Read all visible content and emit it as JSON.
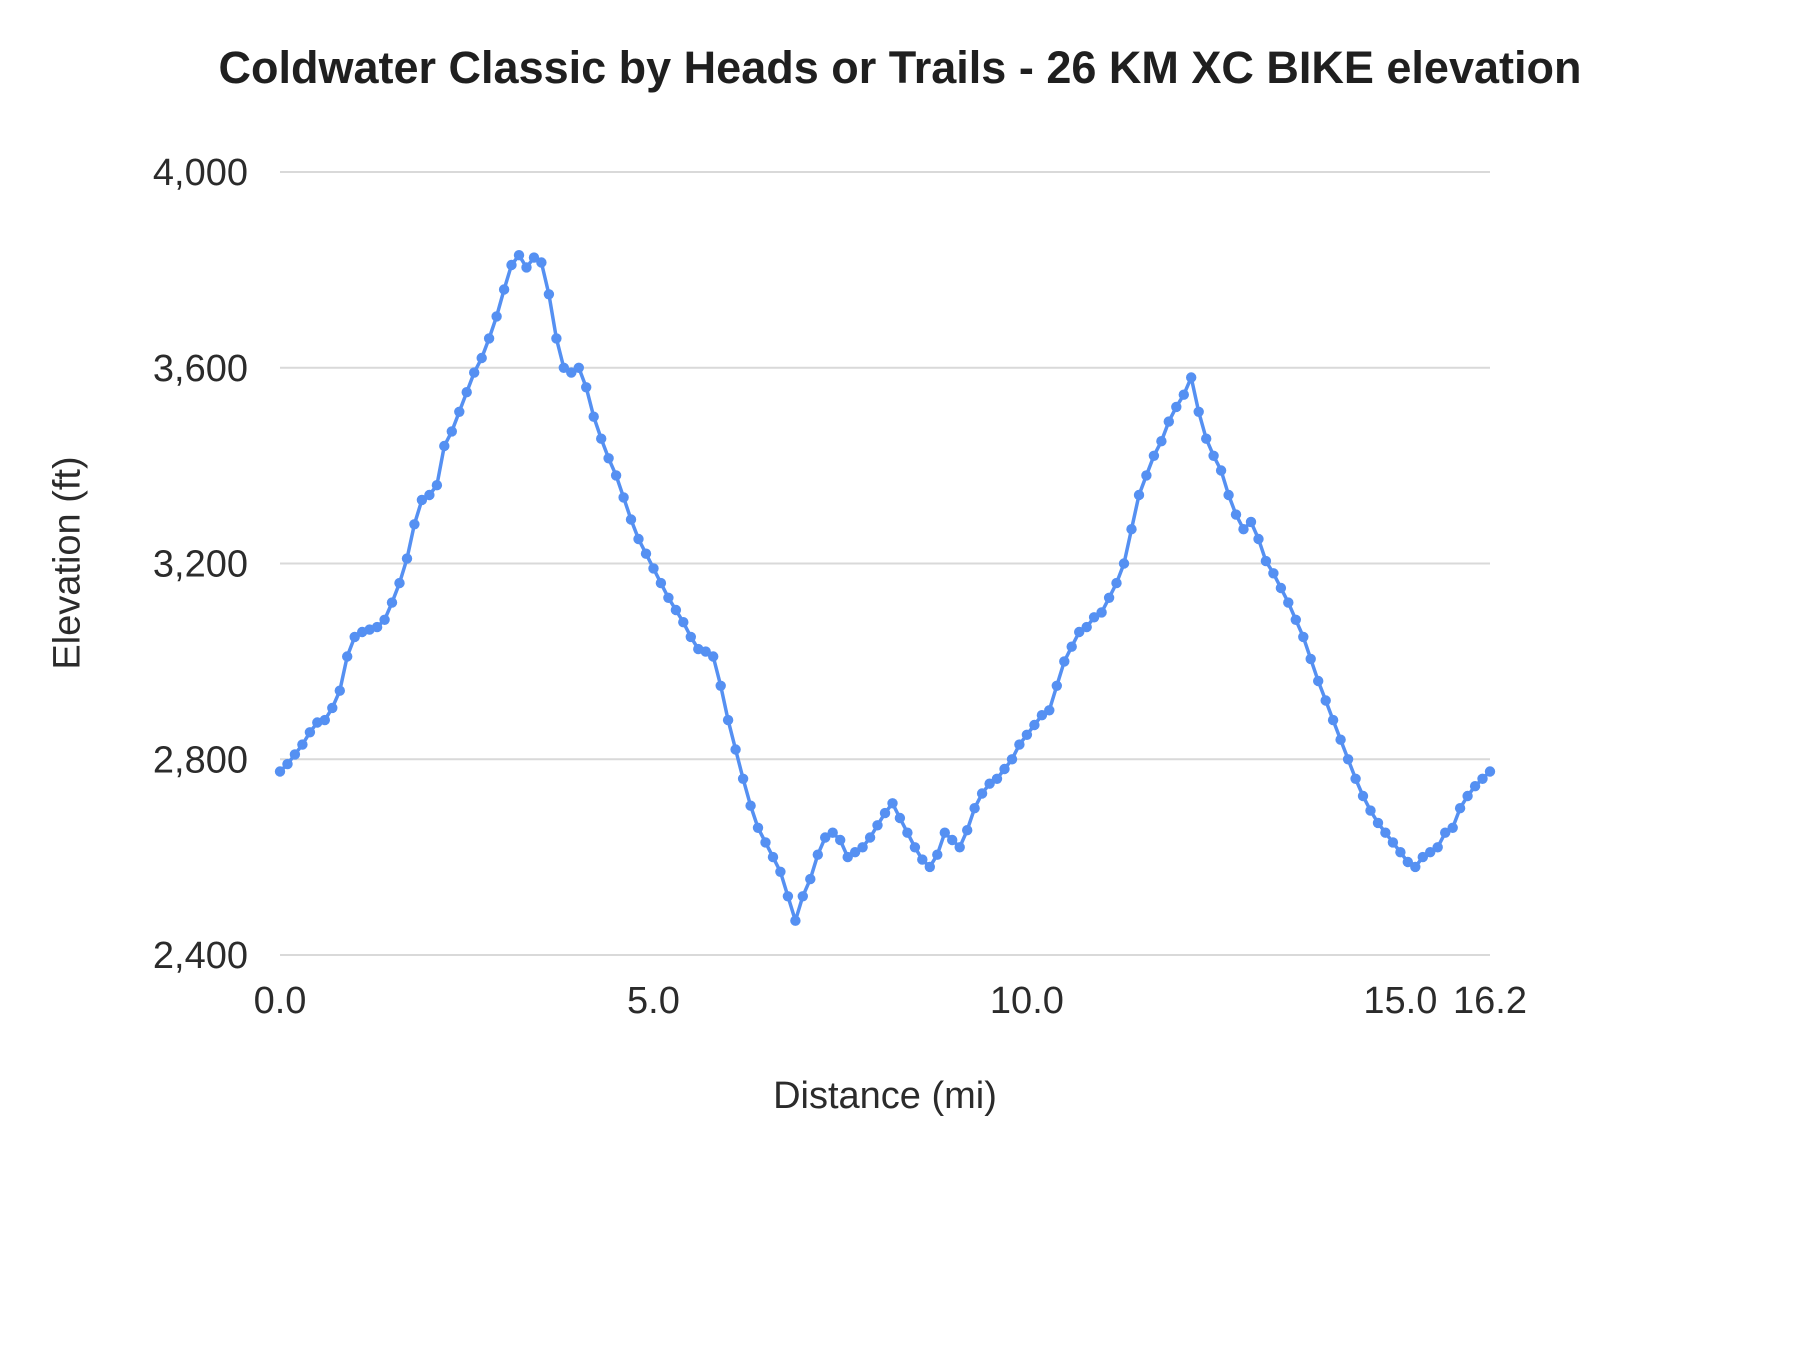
{
  "chart_data": {
    "type": "line",
    "title": "Coldwater Classic by Heads or Trails - 26 KM XC BIKE elevation",
    "xlabel": "Distance (mi)",
    "ylabel": "Elevation (ft)",
    "xlim": [
      0,
      16.2
    ],
    "ylim": [
      2400,
      4000
    ],
    "grid": "horizontal",
    "legend": "none",
    "line_color": "#5590f2",
    "gridline_color": "#d9d9d9",
    "x_ticks": {
      "values": [
        0.0,
        5.0,
        10.0,
        15.0,
        16.2
      ],
      "labels": [
        "0.0",
        "5.0",
        "10.0",
        "15.0",
        "16.2"
      ]
    },
    "y_ticks": {
      "values": [
        2400,
        2800,
        3200,
        3600,
        4000
      ],
      "labels": [
        "2,400",
        "2,800",
        "3,200",
        "3,600",
        "4,000"
      ]
    },
    "series": [
      {
        "name": "elevation",
        "points": [
          [
            0.0,
            2775
          ],
          [
            0.1,
            2790
          ],
          [
            0.2,
            2810
          ],
          [
            0.3,
            2830
          ],
          [
            0.4,
            2855
          ],
          [
            0.5,
            2875
          ],
          [
            0.6,
            2880
          ],
          [
            0.7,
            2905
          ],
          [
            0.8,
            2940
          ],
          [
            0.9,
            3010
          ],
          [
            1.0,
            3050
          ],
          [
            1.1,
            3060
          ],
          [
            1.2,
            3065
          ],
          [
            1.3,
            3070
          ],
          [
            1.4,
            3085
          ],
          [
            1.5,
            3120
          ],
          [
            1.6,
            3160
          ],
          [
            1.7,
            3210
          ],
          [
            1.8,
            3280
          ],
          [
            1.9,
            3330
          ],
          [
            2.0,
            3340
          ],
          [
            2.1,
            3360
          ],
          [
            2.2,
            3440
          ],
          [
            2.3,
            3470
          ],
          [
            2.4,
            3510
          ],
          [
            2.5,
            3550
          ],
          [
            2.6,
            3590
          ],
          [
            2.7,
            3620
          ],
          [
            2.8,
            3660
          ],
          [
            2.9,
            3705
          ],
          [
            3.0,
            3760
          ],
          [
            3.1,
            3810
          ],
          [
            3.2,
            3830
          ],
          [
            3.3,
            3805
          ],
          [
            3.4,
            3825
          ],
          [
            3.5,
            3815
          ],
          [
            3.6,
            3750
          ],
          [
            3.7,
            3660
          ],
          [
            3.8,
            3600
          ],
          [
            3.9,
            3590
          ],
          [
            4.0,
            3600
          ],
          [
            4.1,
            3560
          ],
          [
            4.2,
            3500
          ],
          [
            4.3,
            3455
          ],
          [
            4.4,
            3415
          ],
          [
            4.5,
            3380
          ],
          [
            4.6,
            3335
          ],
          [
            4.7,
            3290
          ],
          [
            4.8,
            3250
          ],
          [
            4.9,
            3220
          ],
          [
            5.0,
            3190
          ],
          [
            5.1,
            3160
          ],
          [
            5.2,
            3130
          ],
          [
            5.3,
            3105
          ],
          [
            5.4,
            3080
          ],
          [
            5.5,
            3050
          ],
          [
            5.6,
            3025
          ],
          [
            5.7,
            3020
          ],
          [
            5.8,
            3010
          ],
          [
            5.9,
            2950
          ],
          [
            6.0,
            2880
          ],
          [
            6.1,
            2820
          ],
          [
            6.2,
            2760
          ],
          [
            6.3,
            2705
          ],
          [
            6.4,
            2660
          ],
          [
            6.5,
            2630
          ],
          [
            6.6,
            2600
          ],
          [
            6.7,
            2570
          ],
          [
            6.8,
            2520
          ],
          [
            6.9,
            2470
          ],
          [
            7.0,
            2520
          ],
          [
            7.1,
            2555
          ],
          [
            7.2,
            2605
          ],
          [
            7.3,
            2640
          ],
          [
            7.4,
            2650
          ],
          [
            7.5,
            2635
          ],
          [
            7.6,
            2600
          ],
          [
            7.7,
            2610
          ],
          [
            7.8,
            2620
          ],
          [
            7.9,
            2640
          ],
          [
            8.0,
            2665
          ],
          [
            8.1,
            2690
          ],
          [
            8.2,
            2710
          ],
          [
            8.3,
            2680
          ],
          [
            8.4,
            2650
          ],
          [
            8.5,
            2620
          ],
          [
            8.6,
            2595
          ],
          [
            8.7,
            2580
          ],
          [
            8.8,
            2605
          ],
          [
            8.9,
            2650
          ],
          [
            9.0,
            2635
          ],
          [
            9.1,
            2620
          ],
          [
            9.2,
            2655
          ],
          [
            9.3,
            2700
          ],
          [
            9.4,
            2730
          ],
          [
            9.5,
            2750
          ],
          [
            9.6,
            2760
          ],
          [
            9.7,
            2780
          ],
          [
            9.8,
            2800
          ],
          [
            9.9,
            2830
          ],
          [
            10.0,
            2850
          ],
          [
            10.1,
            2870
          ],
          [
            10.2,
            2890
          ],
          [
            10.3,
            2900
          ],
          [
            10.4,
            2950
          ],
          [
            10.5,
            3000
          ],
          [
            10.6,
            3030
          ],
          [
            10.7,
            3060
          ],
          [
            10.8,
            3070
          ],
          [
            10.9,
            3090
          ],
          [
            11.0,
            3100
          ],
          [
            11.1,
            3130
          ],
          [
            11.2,
            3160
          ],
          [
            11.3,
            3200
          ],
          [
            11.4,
            3270
          ],
          [
            11.5,
            3340
          ],
          [
            11.6,
            3380
          ],
          [
            11.7,
            3420
          ],
          [
            11.8,
            3450
          ],
          [
            11.9,
            3490
          ],
          [
            12.0,
            3520
          ],
          [
            12.1,
            3545
          ],
          [
            12.2,
            3580
          ],
          [
            12.3,
            3510
          ],
          [
            12.4,
            3455
          ],
          [
            12.5,
            3420
          ],
          [
            12.6,
            3390
          ],
          [
            12.7,
            3340
          ],
          [
            12.8,
            3300
          ],
          [
            12.9,
            3270
          ],
          [
            13.0,
            3285
          ],
          [
            13.1,
            3250
          ],
          [
            13.2,
            3205
          ],
          [
            13.3,
            3180
          ],
          [
            13.4,
            3150
          ],
          [
            13.5,
            3120
          ],
          [
            13.6,
            3085
          ],
          [
            13.7,
            3050
          ],
          [
            13.8,
            3005
          ],
          [
            13.9,
            2960
          ],
          [
            14.0,
            2920
          ],
          [
            14.1,
            2880
          ],
          [
            14.2,
            2840
          ],
          [
            14.3,
            2800
          ],
          [
            14.4,
            2760
          ],
          [
            14.5,
            2725
          ],
          [
            14.6,
            2695
          ],
          [
            14.7,
            2670
          ],
          [
            14.8,
            2650
          ],
          [
            14.9,
            2630
          ],
          [
            15.0,
            2610
          ],
          [
            15.1,
            2590
          ],
          [
            15.2,
            2580
          ],
          [
            15.3,
            2600
          ],
          [
            15.4,
            2610
          ],
          [
            15.5,
            2620
          ],
          [
            15.6,
            2650
          ],
          [
            15.7,
            2660
          ],
          [
            15.8,
            2700
          ],
          [
            15.9,
            2725
          ],
          [
            16.0,
            2745
          ],
          [
            16.1,
            2760
          ],
          [
            16.2,
            2775
          ]
        ]
      }
    ]
  }
}
